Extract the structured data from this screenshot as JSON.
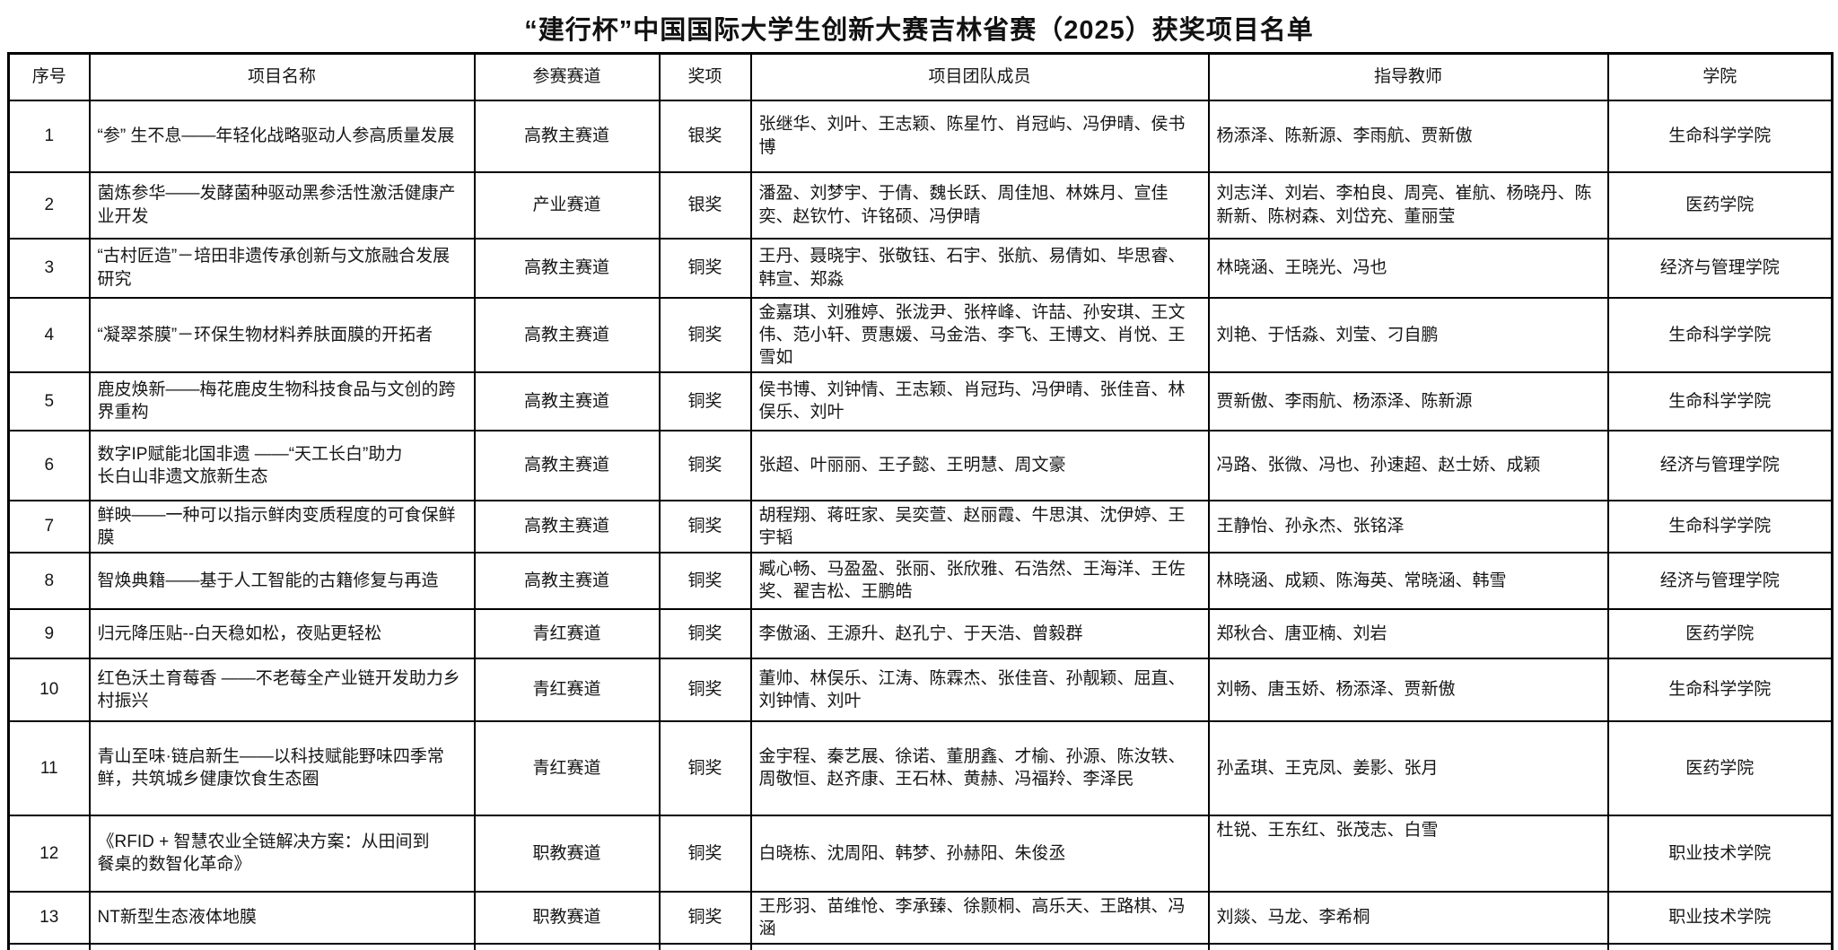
{
  "title": "“建行杯”中国国际大学生创新大赛吉林省赛（2025）获奖项目名单",
  "table": {
    "columns": [
      {
        "key": "index",
        "label": "序号"
      },
      {
        "key": "name",
        "label": "项目名称"
      },
      {
        "key": "track",
        "label": "参赛赛道"
      },
      {
        "key": "award",
        "label": "奖项"
      },
      {
        "key": "members",
        "label": "项目团队成员"
      },
      {
        "key": "advisors",
        "label": "指导教师"
      },
      {
        "key": "college",
        "label": "学院"
      }
    ],
    "rows": [
      {
        "index": "1",
        "name": "“参” 生不息——年轻化战略驱动人参高质量发展",
        "track": "高教主赛道",
        "award": "银奖",
        "members": "张继华、刘叶、王志颖、陈星竹、肖冠屿、冯伊晴、侯书博",
        "advisors": "杨添泽、陈新源、李雨航、贾新傲",
        "college": "生命科学学院"
      },
      {
        "index": "2",
        "name": "菌炼参华——发酵菌种驱动黑参活性激活健康产业开发",
        "track": "产业赛道",
        "award": "银奖",
        "members": "潘盈、刘梦宇、于倩、魏长跃、周佳旭、林姝月、宣佳奕、赵钦竹、许铭硕、冯伊晴",
        "advisors": "刘志洋、刘岩、李柏良、周亮、崔航、杨晓丹、陈新新、陈树森、刘岱充、董丽莹",
        "college": "医药学院"
      },
      {
        "index": "3",
        "name": "“古村匠造”－培田非遗传承创新与文旅融合发展研究",
        "track": "高教主赛道",
        "award": "铜奖",
        "members": "王丹、聂晓宇、张敬钰、石宇、张航、易倩如、毕思睿、韩宣、郑淼",
        "advisors": "林晓涵、王晓光、冯也",
        "college": "经济与管理学院"
      },
      {
        "index": "4",
        "name": "“凝翠茶膜”－环保生物材料养肤面膜的开拓者",
        "track": "高教主赛道",
        "award": "铜奖",
        "members": "金嘉琪、刘雅婷、张泷尹、张梓峰、许喆、孙安琪、王文伟、范小轩、贾惠媛、马金浩、李飞、王博文、肖悦、王雪如",
        "advisors": "刘艳、于恬淼、刘莹、刁自鹏",
        "college": "生命科学学院"
      },
      {
        "index": "5",
        "name": "鹿皮焕新——梅花鹿皮生物科技食品与文创的跨界重构",
        "track": "高教主赛道",
        "award": "铜奖",
        "members": "侯书博、刘钟情、王志颖、肖冠玙、冯伊晴、张佳音、林俣乐、刘叶",
        "advisors": "贾新傲、李雨航、杨添泽、陈新源",
        "college": "生命科学学院"
      },
      {
        "index": "6",
        "name": "数字IP赋能北国非遗 ——“天工长白”助力\n长白山非遗文旅新生态",
        "track": "高教主赛道",
        "award": "铜奖",
        "members": "张超、叶丽丽、王子懿、王明慧、周文豪",
        "advisors": "冯路、张微、冯也、孙速超、赵士娇、成颖",
        "college": "经济与管理学院"
      },
      {
        "index": "7",
        "name": "鲜映——一种可以指示鲜肉变质程度的可食保鲜膜",
        "track": "高教主赛道",
        "award": "铜奖",
        "members": "胡程翔、蒋旺家、吴奕萱、赵丽霞、牛思淇、沈伊婷、王宇韬",
        "advisors": "王静怡、孙永杰、张铭泽",
        "college": "生命科学学院"
      },
      {
        "index": "8",
        "name": "智焕典籍——基于人工智能的古籍修复与再造",
        "track": "高教主赛道",
        "award": "铜奖",
        "members": "臧心畅、马盈盈、张丽、张欣雅、石浩然、王海洋、王佐奖、翟吉松、王鹏皓",
        "advisors": "林晓涵、成颖、陈海英、常晓涵、韩雪",
        "college": "经济与管理学院"
      },
      {
        "index": "9",
        "name": "归元降压贴--白天稳如松，夜贴更轻松",
        "track": "青红赛道",
        "award": "铜奖",
        "members": "李傲涵、王源升、赵孔宁、于天浩、曾毅群",
        "advisors": "郑秋合、唐亚楠、刘岩",
        "college": "医药学院"
      },
      {
        "index": "10",
        "name": "红色沃土育莓香 ——不老莓全产业链开发助力乡村振兴",
        "track": "青红赛道",
        "award": "铜奖",
        "members": "董帅、林俣乐、江涛、陈霖杰、张佳音、孙靓颖、屈直、刘钟情、刘叶",
        "advisors": "刘畅、唐玉娇、杨添泽、贾新傲",
        "college": "生命科学学院"
      },
      {
        "index": "11",
        "name": "青山至味·链启新生——以科技赋能野味四季常鲜，共筑城乡健康饮食生态圈",
        "track": "青红赛道",
        "award": "铜奖",
        "members": "金宇程、秦艺展、徐诺、董朋鑫、才榆、孙源、陈汝轶、周敬恒、赵齐康、王石林、黄赫、冯福羚、李泽民",
        "advisors": "孙孟琪、王克凤、姜影、张月",
        "college": "医药学院"
      },
      {
        "index": "12",
        "name": "《RFID + 智慧农业全链解决方案：从田间到\n餐桌的数智化革命》",
        "track": "职教赛道",
        "award": "铜奖",
        "members": "白晓栋、沈周阳、韩梦、孙赫阳、朱俊丞",
        "advisors": "杜锐、王东红、张茂志、白雪",
        "college": "职业技术学院"
      },
      {
        "index": "13",
        "name": "NT新型生态液体地膜",
        "track": "职教赛道",
        "award": "铜奖",
        "members": "王彤羽、苗维怆、李承臻、徐颢桐、高乐天、王路棋、冯涵",
        "advisors": "刘燚、马龙、李希桐",
        "college": "职业技术学院"
      }
    ]
  }
}
